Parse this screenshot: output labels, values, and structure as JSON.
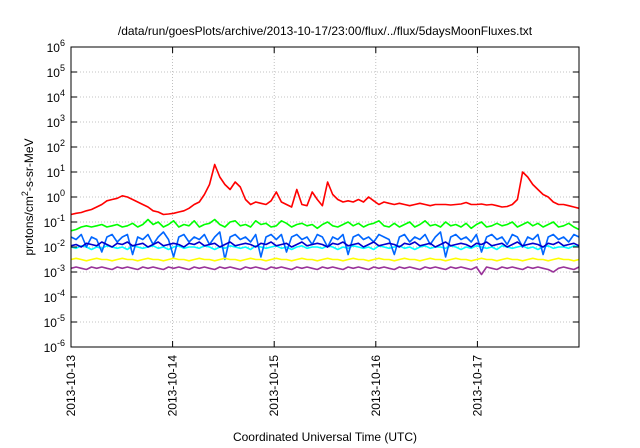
{
  "chart_data": {
    "type": "line",
    "title": "/data/run/goesPlots/archive/2013-10-17/23:00/flux/../flux/5daysMoonFluxes.txt",
    "xlabel": "Coordinated Universal Time (UTC)",
    "ylabel_main": "protons/cm",
    "ylabel_sup": "2",
    "ylabel_rest": "-s-sr-MeV",
    "y_scale": "log",
    "ylim_exp": [
      -6,
      6
    ],
    "x_range_days": [
      0,
      5
    ],
    "x_ticks": [
      {
        "label": "2013-10-13",
        "day": 0
      },
      {
        "label": "2013-10-14",
        "day": 1
      },
      {
        "label": "2013-10-15",
        "day": 2
      },
      {
        "label": "2013-10-16",
        "day": 3
      },
      {
        "label": "2013-10-17",
        "day": 4
      }
    ],
    "y_ticks": [
      {
        "base": "10",
        "exp": "-6",
        "e": -6
      },
      {
        "base": "10",
        "exp": "-5",
        "e": -5
      },
      {
        "base": "10",
        "exp": "-4",
        "e": -4
      },
      {
        "base": "10",
        "exp": "-3",
        "e": -3
      },
      {
        "base": "10",
        "exp": "-2",
        "e": -2
      },
      {
        "base": "10",
        "exp": "-1",
        "e": -1
      },
      {
        "base": "10",
        "exp": "0",
        "e": 0
      },
      {
        "base": "10",
        "exp": "1",
        "e": 1
      },
      {
        "base": "10",
        "exp": "2",
        "e": 2
      },
      {
        "base": "10",
        "exp": "3",
        "e": 3
      },
      {
        "base": "10",
        "exp": "4",
        "e": 4
      },
      {
        "base": "10",
        "exp": "5",
        "e": 5
      },
      {
        "base": "10",
        "exp": "6",
        "e": 6
      }
    ],
    "grid": true,
    "series": [
      {
        "color": "#ff0000",
        "log_values": [
          -0.7,
          -0.65,
          -0.62,
          -0.55,
          -0.5,
          -0.4,
          -0.3,
          -0.15,
          -0.1,
          -0.05,
          0.05,
          0.0,
          -0.1,
          -0.2,
          -0.3,
          -0.4,
          -0.55,
          -0.6,
          -0.7,
          -0.68,
          -0.65,
          -0.6,
          -0.55,
          -0.45,
          -0.3,
          -0.2,
          0.1,
          0.5,
          1.3,
          0.8,
          0.5,
          0.3,
          0.6,
          0.4,
          -0.1,
          -0.3,
          -0.2,
          -0.25,
          -0.3,
          -0.15,
          0.2,
          -0.2,
          -0.3,
          -0.4,
          0.3,
          -0.3,
          -0.35,
          0.2,
          -0.1,
          -0.35,
          0.6,
          0.1,
          -0.1,
          -0.2,
          -0.15,
          -0.2,
          -0.1,
          -0.2,
          0.0,
          -0.15,
          -0.3,
          -0.2,
          -0.25,
          -0.3,
          -0.25,
          -0.3,
          -0.35,
          -0.3,
          -0.25,
          -0.3,
          -0.35,
          -0.3,
          -0.3,
          -0.3,
          -0.32,
          -0.3,
          -0.28,
          -0.22,
          -0.3,
          -0.3,
          -0.28,
          -0.32,
          -0.3,
          -0.35,
          -0.4,
          -0.38,
          -0.3,
          -0.1,
          1.0,
          0.8,
          0.5,
          0.3,
          0.1,
          0.0,
          -0.2,
          -0.3,
          -0.3,
          -0.35,
          -0.4,
          -0.45
        ]
      },
      {
        "color": "#00ff00",
        "log_values": [
          -1.35,
          -1.3,
          -1.2,
          -1.15,
          -1.2,
          -1.15,
          -1.1,
          -1.2,
          -1.15,
          -1.1,
          -1.2,
          -1.15,
          -1.05,
          -1.2,
          -1.1,
          -0.9,
          -1.1,
          -1.0,
          -1.2,
          -1.1,
          -0.95,
          -1.2,
          -1.1,
          -1.15,
          -0.95,
          -1.2,
          -1.1,
          -1.05,
          -0.9,
          -1.1,
          -1.2,
          -1.0,
          -0.95,
          -1.15,
          -1.1,
          -1.2,
          -0.95,
          -1.1,
          -1.05,
          -1.2,
          -1.15,
          -0.95,
          -1.05,
          -1.2,
          -1.1,
          -1.05,
          -1.15,
          -1.1,
          -1.25,
          -1.1,
          -1.0,
          -1.15,
          -1.2,
          -1.1,
          -1.0,
          -1.15,
          -1.05,
          -1.2,
          -1.1,
          -1.05,
          -0.95,
          -1.15,
          -1.2,
          -1.05,
          -1.2,
          -1.1,
          -1.0,
          -1.2,
          -1.1,
          -0.95,
          -1.15,
          -1.1,
          -1.2,
          -1.0,
          -1.15,
          -1.1,
          -1.2,
          -1.05,
          -1.25,
          -1.1,
          -1.0,
          -1.2,
          -1.15,
          -1.05,
          -1.15,
          -1.1,
          -1.0,
          -1.2,
          -1.1,
          -1.0,
          -1.15,
          -1.05,
          -1.2,
          -1.1,
          -1.0,
          -1.2,
          -1.15,
          -1.05,
          -1.2,
          -1.3
        ]
      },
      {
        "color": "#00ffff",
        "log_values": [
          -2.0,
          -2.05,
          -1.95,
          -2.0,
          -2.1,
          -2.0,
          -2.05,
          -1.95,
          -2.0,
          -2.05,
          -2.0,
          -2.1,
          -1.95,
          -2.0,
          -2.05,
          -2.0,
          -1.95,
          -2.05,
          -2.0,
          -2.1,
          -2.0,
          -1.95,
          -2.05,
          -2.0,
          -2.0,
          -2.05,
          -1.95,
          -2.0,
          -2.1,
          -2.0,
          -2.05,
          -1.95,
          -2.0,
          -2.05,
          -2.0,
          -2.1,
          -1.95,
          -2.0,
          -2.05,
          -2.0,
          -1.95,
          -2.05,
          -2.0,
          -2.1,
          -2.0,
          -1.95,
          -2.05,
          -2.0,
          -2.0,
          -2.05,
          -1.95,
          -2.0,
          -2.1,
          -2.0,
          -2.05,
          -1.95,
          -2.0,
          -2.05,
          -2.0,
          -2.1,
          -1.95,
          -2.0,
          -2.05,
          -2.0,
          -1.95,
          -2.05,
          -2.0,
          -2.1,
          -2.0,
          -1.95,
          -2.05,
          -2.0,
          -2.0,
          -2.05,
          -1.95,
          -2.0,
          -2.1,
          -2.0,
          -2.05,
          -1.95,
          -2.0,
          -2.05,
          -2.0,
          -2.1,
          -1.95,
          -2.0,
          -2.05,
          -2.0,
          -1.95,
          -2.05,
          -2.0,
          -2.1,
          -2.0,
          -1.95,
          -2.05,
          -2.0,
          -2.0,
          -2.05,
          -1.95,
          -2.0
        ]
      },
      {
        "color": "#0066ff",
        "log_values": [
          -1.6,
          -1.7,
          -1.5,
          -2.0,
          -1.6,
          -1.7,
          -2.2,
          -1.6,
          -1.5,
          -1.8,
          -1.6,
          -1.5,
          -2.3,
          -1.6,
          -1.7,
          -1.5,
          -1.9,
          -1.6,
          -1.4,
          -1.7,
          -2.4,
          -1.6,
          -1.5,
          -1.8,
          -1.6,
          -1.7,
          -1.5,
          -1.9,
          -1.6,
          -1.4,
          -2.5,
          -1.6,
          -1.5,
          -1.7,
          -1.6,
          -1.8,
          -1.5,
          -2.4,
          -1.6,
          -1.5,
          -1.7,
          -1.5,
          -2.2,
          -1.6,
          -1.5,
          -1.7,
          -1.6,
          -1.9,
          -1.5,
          -1.6,
          -2.0,
          -1.6,
          -1.7,
          -1.5,
          -2.3,
          -1.6,
          -1.5,
          -1.7,
          -1.6,
          -1.8,
          -1.5,
          -1.6,
          -1.7,
          -2.3,
          -1.6,
          -1.5,
          -1.8,
          -1.6,
          -1.7,
          -1.5,
          -1.9,
          -1.6,
          -1.4,
          -2.4,
          -1.6,
          -1.5,
          -1.7,
          -1.6,
          -1.8,
          -1.5,
          -2.2,
          -1.6,
          -1.5,
          -1.7,
          -1.6,
          -1.9,
          -1.5,
          -1.6,
          -2.0,
          -1.6,
          -1.7,
          -1.5,
          -2.3,
          -1.6,
          -1.5,
          -1.7,
          -1.6,
          -1.8,
          -1.5,
          -1.6
        ]
      },
      {
        "color": "#0000cc",
        "log_values": [
          -1.95,
          -1.9,
          -2.0,
          -1.85,
          -1.9,
          -1.95,
          -1.8,
          -1.9,
          -2.0,
          -1.85,
          -1.9,
          -1.8,
          -1.95,
          -1.9,
          -1.85,
          -2.0,
          -1.9,
          -1.8,
          -1.95,
          -1.9,
          -1.85,
          -1.9,
          -2.0,
          -1.85,
          -1.9,
          -1.8,
          -1.95,
          -1.9,
          -1.85,
          -2.0,
          -1.9,
          -1.8,
          -1.95,
          -1.9,
          -1.85,
          -1.9,
          -2.0,
          -1.85,
          -1.9,
          -1.8,
          -1.95,
          -1.9,
          -1.85,
          -2.0,
          -1.9,
          -1.8,
          -1.95,
          -1.9,
          -1.85,
          -1.9,
          -2.0,
          -1.85,
          -1.9,
          -1.8,
          -1.95,
          -1.9,
          -1.85,
          -2.0,
          -1.9,
          -1.8,
          -1.95,
          -1.9,
          -1.85,
          -1.9,
          -2.0,
          -1.85,
          -1.9,
          -1.8,
          -1.95,
          -1.9,
          -1.85,
          -2.0,
          -1.9,
          -1.8,
          -1.95,
          -1.9,
          -1.85,
          -1.9,
          -2.0,
          -1.85,
          -1.9,
          -1.8,
          -1.95,
          -1.9,
          -1.85,
          -2.0,
          -1.9,
          -1.8,
          -1.95,
          -1.9,
          -1.85,
          -1.9,
          -2.0,
          -1.85,
          -1.9,
          -1.8,
          -1.95,
          -1.9,
          -1.85,
          -1.95
        ]
      },
      {
        "color": "#ffff00",
        "log_values": [
          -2.5,
          -2.45,
          -2.5,
          -2.55,
          -2.5,
          -2.45,
          -2.5,
          -2.5,
          -2.55,
          -2.5,
          -2.45,
          -2.5,
          -2.5,
          -2.55,
          -2.5,
          -2.45,
          -2.5,
          -2.5,
          -2.55,
          -2.5,
          -2.45,
          -2.5,
          -2.5,
          -2.55,
          -2.5,
          -2.45,
          -2.5,
          -2.5,
          -2.55,
          -2.5,
          -2.45,
          -2.5,
          -2.5,
          -2.55,
          -2.5,
          -2.45,
          -2.5,
          -2.5,
          -2.55,
          -2.5,
          -2.45,
          -2.5,
          -2.5,
          -2.55,
          -2.5,
          -2.45,
          -2.5,
          -2.5,
          -2.55,
          -2.5,
          -2.45,
          -2.5,
          -2.5,
          -2.55,
          -2.5,
          -2.45,
          -2.5,
          -2.5,
          -2.55,
          -2.5,
          -2.45,
          -2.5,
          -2.5,
          -2.55,
          -2.5,
          -2.45,
          -2.5,
          -2.5,
          -2.55,
          -2.5,
          -2.45,
          -2.5,
          -2.5,
          -2.55,
          -2.5,
          -2.45,
          -2.5,
          -2.5,
          -2.55,
          -2.5,
          -2.45,
          -2.5,
          -2.5,
          -2.55,
          -2.5,
          -2.45,
          -2.5,
          -2.5,
          -2.55,
          -2.5,
          -2.45,
          -2.5,
          -2.5,
          -2.55,
          -2.5,
          -2.45,
          -2.5,
          -2.5,
          -2.55,
          -2.5
        ]
      },
      {
        "color": "#993399",
        "log_values": [
          -2.85,
          -2.8,
          -2.85,
          -2.9,
          -2.8,
          -2.85,
          -2.8,
          -2.85,
          -2.9,
          -2.8,
          -2.85,
          -2.8,
          -2.85,
          -2.9,
          -2.8,
          -2.85,
          -2.8,
          -2.85,
          -2.9,
          -2.8,
          -2.85,
          -2.8,
          -2.85,
          -2.9,
          -2.8,
          -2.85,
          -2.8,
          -2.85,
          -2.9,
          -2.8,
          -2.85,
          -2.8,
          -2.85,
          -2.9,
          -2.8,
          -2.85,
          -2.8,
          -2.85,
          -2.9,
          -2.8,
          -2.85,
          -2.8,
          -2.85,
          -2.9,
          -2.8,
          -2.85,
          -2.8,
          -2.85,
          -2.9,
          -2.8,
          -2.85,
          -2.8,
          -2.85,
          -2.9,
          -2.8,
          -2.85,
          -2.8,
          -2.85,
          -2.9,
          -2.8,
          -2.85,
          -2.8,
          -2.85,
          -2.9,
          -2.8,
          -2.85,
          -2.8,
          -2.85,
          -2.9,
          -2.8,
          -2.85,
          -2.8,
          -2.85,
          -2.9,
          -2.8,
          -2.85,
          -2.8,
          -2.85,
          -2.9,
          -2.8,
          -3.1,
          -2.8,
          -2.85,
          -2.9,
          -2.8,
          -2.85,
          -2.8,
          -2.85,
          -2.9,
          -2.8,
          -2.85,
          -2.8,
          -2.85,
          -2.9,
          -3.0,
          -2.85,
          -2.8,
          -2.85,
          -2.9,
          -2.8
        ]
      }
    ]
  }
}
